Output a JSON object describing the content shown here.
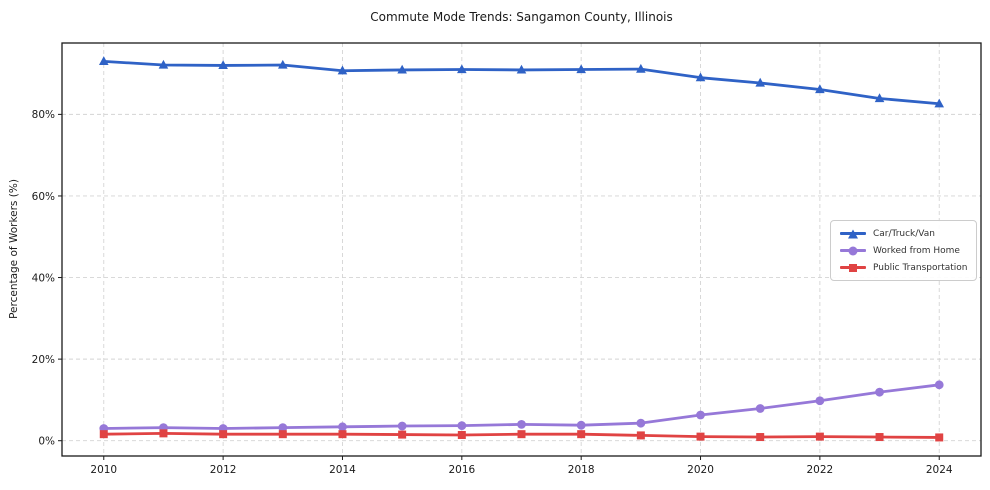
{
  "figure": {
    "background": "#ffffff"
  },
  "chart_data": {
    "type": "line",
    "title": "Commute Mode Trends: Sangamon County, Illinois",
    "xlabel": "",
    "ylabel": "Percentage of Workers (%)",
    "x": [
      2010,
      2011,
      2012,
      2013,
      2014,
      2015,
      2016,
      2017,
      2018,
      2019,
      2020,
      2021,
      2022,
      2023,
      2024
    ],
    "series": [
      {
        "name": "Car/Truck/Van",
        "marker": "triangle",
        "color": "#2f62c6",
        "values": [
          93.0,
          92.1,
          92.0,
          92.1,
          90.7,
          90.9,
          91.0,
          90.9,
          91.0,
          91.1,
          89.0,
          87.7,
          86.1,
          83.9,
          82.6
        ]
      },
      {
        "name": "Worked from Home",
        "marker": "circle",
        "color": "#9678d8",
        "values": [
          3.0,
          3.2,
          3.0,
          3.2,
          3.4,
          3.6,
          3.7,
          4.0,
          3.8,
          4.3,
          6.3,
          7.9,
          9.8,
          11.9,
          13.7
        ]
      },
      {
        "name": "Public Transportation",
        "marker": "square",
        "color": "#e04343",
        "values": [
          1.6,
          1.8,
          1.6,
          1.6,
          1.6,
          1.5,
          1.4,
          1.6,
          1.6,
          1.3,
          1.0,
          0.9,
          1.0,
          0.9,
          0.8
        ]
      }
    ],
    "xticks": [
      2010,
      2012,
      2014,
      2016,
      2018,
      2020,
      2022,
      2024
    ],
    "xtick_labels": [
      "2010",
      "2012",
      "2014",
      "2016",
      "2018",
      "2020",
      "2022",
      "2024"
    ],
    "yticks": [
      0,
      20,
      40,
      60,
      80
    ],
    "ytick_labels": [
      "0%",
      "20%",
      "40%",
      "60%",
      "80%"
    ],
    "xlim": [
      2009.3,
      2024.7
    ],
    "ylim": [
      -3.75,
      97.5
    ],
    "grid": true,
    "grid_style": "dashed",
    "legend_position": "center right",
    "colors": {
      "grid": "#d4d4d4",
      "spine": "#1a1a1a",
      "tick_text": "#1a1a1a",
      "legend_border": "#cccccc"
    }
  }
}
